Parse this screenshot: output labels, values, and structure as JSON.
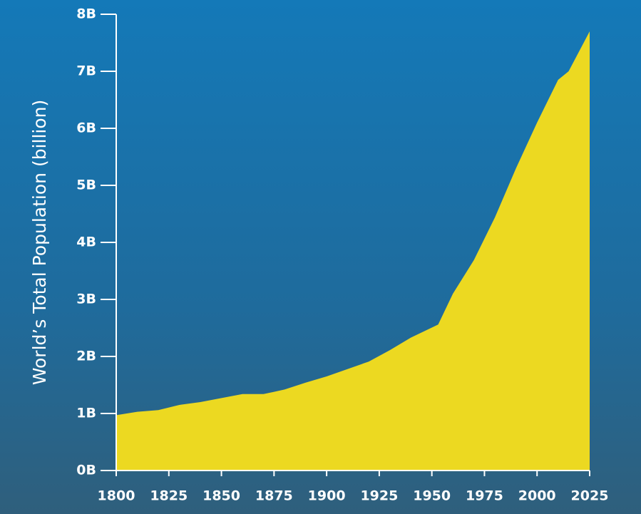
{
  "chart_data": {
    "type": "area",
    "y_axis_label": "World’s Total Population (billion)",
    "x": [
      1800,
      1810,
      1820,
      1830,
      1840,
      1850,
      1860,
      1870,
      1880,
      1890,
      1900,
      1910,
      1920,
      1930,
      1940,
      1953,
      1960,
      1970,
      1980,
      1990,
      2000,
      2010,
      2015,
      2025
    ],
    "values": [
      0.97,
      1.03,
      1.06,
      1.15,
      1.2,
      1.27,
      1.34,
      1.34,
      1.42,
      1.54,
      1.65,
      1.78,
      1.91,
      2.11,
      2.33,
      2.56,
      3.1,
      3.69,
      4.44,
      5.3,
      6.1,
      6.85,
      7.0,
      7.7
    ],
    "color": "#ecd921",
    "xlim": [
      1800,
      2025
    ],
    "xticks": [
      1800,
      1825,
      1850,
      1875,
      1900,
      1925,
      1950,
      1975,
      2000,
      2025
    ],
    "ylim": [
      0,
      8
    ],
    "yticks": [
      {
        "value": 0,
        "label": "0B"
      },
      {
        "value": 1,
        "label": "1B"
      },
      {
        "value": 2,
        "label": "2B"
      },
      {
        "value": 3,
        "label": "3B"
      },
      {
        "value": 4,
        "label": "4B"
      },
      {
        "value": 5,
        "label": "5B"
      },
      {
        "value": 6,
        "label": "6B"
      },
      {
        "value": 7,
        "label": "7B"
      },
      {
        "value": 8,
        "label": "8B"
      }
    ]
  }
}
